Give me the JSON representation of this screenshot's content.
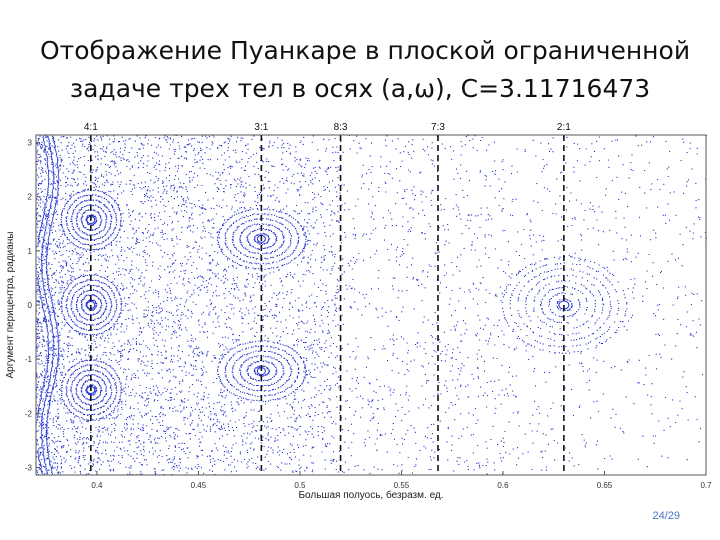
{
  "slide": {
    "title_line1": "Отображение Пуанкаре в плоской ограниченной",
    "title_line2": "задаче трех тел в осях (a,ω), C=3.11716473",
    "page_number": "24/29"
  },
  "chart_data": {
    "type": "scatter",
    "xlabel": "Большая полуось, безразм. ед.",
    "ylabel": "Аргумент перицентра, радианы",
    "xlim": [
      0.37,
      0.7
    ],
    "ylim": [
      -3.14,
      3.14
    ],
    "xticks": [
      0.4,
      0.45,
      0.5,
      0.55,
      0.6,
      0.65,
      0.7
    ],
    "xtick_labels": [
      "0.4",
      "0.45",
      "0.5",
      "0.55",
      "0.6",
      "0.65",
      "0.7"
    ],
    "yticks": [
      -3,
      -2,
      -1,
      0,
      1,
      2,
      3
    ],
    "ytick_labels": [
      "-3",
      "-2",
      "-1",
      "0",
      "1",
      "2",
      "3"
    ],
    "point_color": "#2233cc",
    "resonances": [
      {
        "label": "4:1",
        "x": 0.397
      },
      {
        "label": "3:1",
        "x": 0.481
      },
      {
        "label": "8:3",
        "x": 0.52
      },
      {
        "label": "7:3",
        "x": 0.568
      },
      {
        "label": "2:1",
        "x": 0.63
      }
    ],
    "islands": [
      {
        "x": 0.397,
        "y": 1.57
      },
      {
        "x": 0.397,
        "y": 0.0
      },
      {
        "x": 0.397,
        "y": -1.57
      },
      {
        "x": 0.481,
        "y": 1.22
      },
      {
        "x": 0.481,
        "y": -1.22
      },
      {
        "x": 0.63,
        "y": 0.0
      }
    ]
  }
}
